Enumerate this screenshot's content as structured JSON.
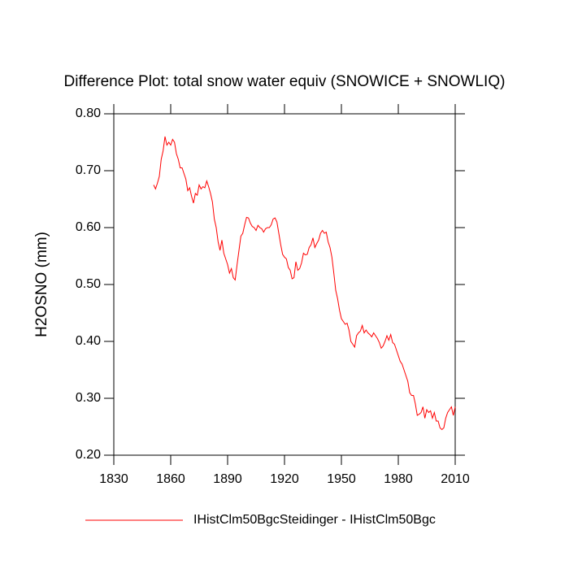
{
  "chart_data": {
    "type": "line",
    "title": "Difference Plot: total snow water equiv (SNOWICE + SNOWLIQ)",
    "y_label": "H2OSNO  (mm)",
    "x": [
      1851,
      1852,
      1853,
      1854,
      1855,
      1856,
      1857,
      1858,
      1859,
      1860,
      1861,
      1862,
      1863,
      1864,
      1865,
      1866,
      1867,
      1868,
      1869,
      1870,
      1871,
      1872,
      1873,
      1874,
      1875,
      1876,
      1877,
      1878,
      1879,
      1880,
      1881,
      1882,
      1883,
      1884,
      1885,
      1886,
      1887,
      1888,
      1889,
      1890,
      1891,
      1892,
      1893,
      1894,
      1895,
      1896,
      1897,
      1898,
      1899,
      1900,
      1901,
      1902,
      1903,
      1904,
      1905,
      1906,
      1907,
      1908,
      1909,
      1910,
      1911,
      1912,
      1913,
      1914,
      1915,
      1916,
      1917,
      1918,
      1919,
      1920,
      1921,
      1922,
      1923,
      1924,
      1925,
      1926,
      1927,
      1928,
      1929,
      1930,
      1931,
      1932,
      1933,
      1934,
      1935,
      1936,
      1937,
      1938,
      1939,
      1940,
      1941,
      1942,
      1943,
      1944,
      1945,
      1946,
      1947,
      1948,
      1949,
      1950,
      1951,
      1952,
      1953,
      1954,
      1955,
      1956,
      1957,
      1958,
      1959,
      1960,
      1961,
      1962,
      1963,
      1964,
      1965,
      1966,
      1967,
      1968,
      1969,
      1970,
      1971,
      1972,
      1973,
      1974,
      1975,
      1976,
      1977,
      1978,
      1979,
      1980,
      1981,
      1982,
      1983,
      1984,
      1985,
      1986,
      1987,
      1988,
      1989,
      1990,
      1991,
      1992,
      1993,
      1994,
      1995,
      1996,
      1997,
      1998,
      1999,
      2000,
      2001,
      2002,
      2003,
      2004,
      2005,
      2006,
      2007,
      2008,
      2009,
      2010
    ],
    "series": [
      {
        "name": "IHistClm50BgcSteidinger - IHistClm50Bgc",
        "color": "#ff0000",
        "values": [
          0.675,
          0.668,
          0.678,
          0.69,
          0.72,
          0.735,
          0.76,
          0.745,
          0.75,
          0.745,
          0.755,
          0.75,
          0.73,
          0.72,
          0.705,
          0.705,
          0.695,
          0.685,
          0.665,
          0.67,
          0.655,
          0.643,
          0.66,
          0.657,
          0.675,
          0.668,
          0.672,
          0.67,
          0.682,
          0.672,
          0.66,
          0.645,
          0.615,
          0.6,
          0.575,
          0.56,
          0.578,
          0.555,
          0.545,
          0.535,
          0.52,
          0.528,
          0.512,
          0.508,
          0.535,
          0.56,
          0.585,
          0.59,
          0.605,
          0.618,
          0.617,
          0.608,
          0.602,
          0.6,
          0.595,
          0.604,
          0.6,
          0.598,
          0.592,
          0.598,
          0.6,
          0.6,
          0.605,
          0.615,
          0.617,
          0.61,
          0.59,
          0.57,
          0.553,
          0.548,
          0.545,
          0.53,
          0.525,
          0.51,
          0.512,
          0.54,
          0.525,
          0.528,
          0.538,
          0.555,
          0.552,
          0.553,
          0.565,
          0.57,
          0.582,
          0.565,
          0.572,
          0.578,
          0.59,
          0.595,
          0.59,
          0.592,
          0.575,
          0.565,
          0.548,
          0.52,
          0.49,
          0.475,
          0.455,
          0.44,
          0.435,
          0.43,
          0.432,
          0.42,
          0.4,
          0.395,
          0.39,
          0.41,
          0.415,
          0.418,
          0.428,
          0.415,
          0.42,
          0.415,
          0.412,
          0.408,
          0.415,
          0.41,
          0.405,
          0.398,
          0.388,
          0.392,
          0.4,
          0.41,
          0.402,
          0.412,
          0.398,
          0.395,
          0.385,
          0.375,
          0.365,
          0.36,
          0.35,
          0.34,
          0.33,
          0.31,
          0.305,
          0.305,
          0.29,
          0.27,
          0.272,
          0.275,
          0.285,
          0.265,
          0.28,
          0.275,
          0.278,
          0.265,
          0.275,
          0.26,
          0.26,
          0.248,
          0.245,
          0.248,
          0.265,
          0.275,
          0.28,
          0.285,
          0.27,
          0.285
        ]
      }
    ],
    "xlim": [
      1830,
      2010
    ],
    "xticks": [
      1830,
      1860,
      1890,
      1920,
      1950,
      1980,
      2010
    ],
    "ylim": [
      0.2,
      0.8
    ],
    "yticks": [
      {
        "value": 0.2,
        "label": "0.20"
      },
      {
        "value": 0.3,
        "label": "0.30"
      },
      {
        "value": 0.4,
        "label": "0.40"
      },
      {
        "value": 0.5,
        "label": "0.50"
      },
      {
        "value": 0.6,
        "label": "0.60"
      },
      {
        "value": 0.7,
        "label": "0.70"
      },
      {
        "value": 0.8,
        "label": "0.80"
      }
    ],
    "grid": false
  }
}
